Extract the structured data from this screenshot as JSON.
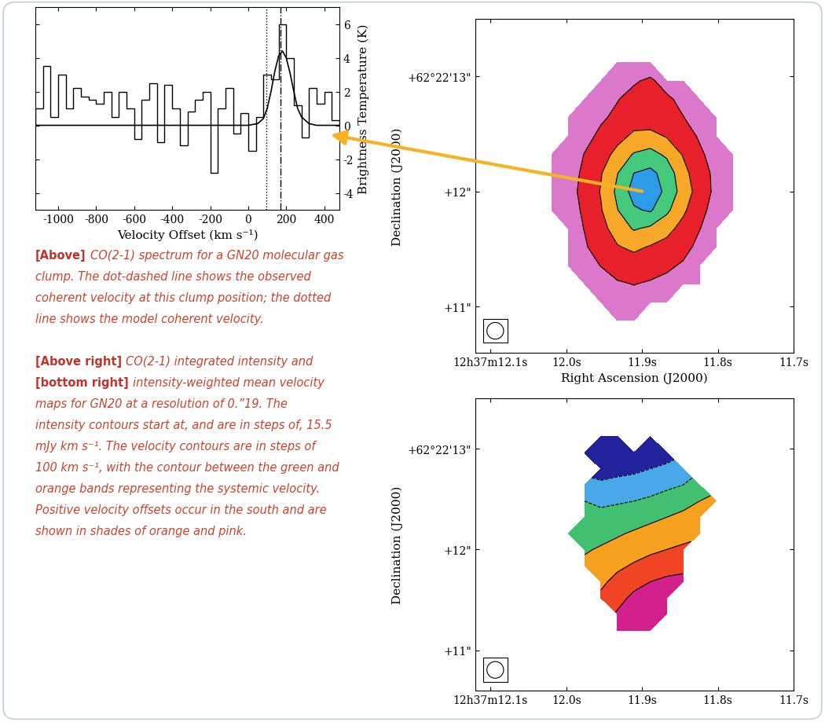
{
  "chart_data": [
    {
      "type": "step",
      "x_label": "Velocity Offset (km s⁻¹)",
      "y_label": "Brightness Temperature (K)",
      "color": "#000000",
      "bins": [
        -1120,
        -1080,
        -1040,
        -1000,
        -960,
        -920,
        -880,
        -840,
        -800,
        -760,
        -720,
        -680,
        -640,
        -600,
        -560,
        -520,
        -480,
        -440,
        -400,
        -360,
        -320,
        -280,
        -240,
        -200,
        -160,
        -120,
        -80,
        -40,
        0,
        40,
        80,
        120,
        160,
        200,
        240,
        280,
        320,
        360,
        400,
        440,
        480
      ],
      "values": [
        1.0,
        3.5,
        0.5,
        3.0,
        1.0,
        2.2,
        1.7,
        1.5,
        1.3,
        2.0,
        0.5,
        2.0,
        1.0,
        -0.8,
        1.5,
        2.5,
        -1.0,
        2.4,
        1.0,
        -1.2,
        0.8,
        1.5,
        2.0,
        -2.8,
        1.0,
        2.2,
        -0.5,
        0.7,
        -1.5,
        0.5,
        3.0,
        2.7,
        6.0,
        4.0,
        1.2,
        -0.7,
        2.2,
        1.3,
        2.0,
        0.3
      ],
      "fit": {
        "color": "#000000",
        "x": [
          -1120,
          0,
          50,
          80,
          100,
          120,
          140,
          160,
          180,
          200,
          220,
          240,
          260,
          280,
          320,
          360,
          480
        ],
        "values": [
          0,
          0,
          0.1,
          0.4,
          1.0,
          2.0,
          3.2,
          4.1,
          4.4,
          4.0,
          3.1,
          2.0,
          1.0,
          0.5,
          0.1,
          0,
          0
        ]
      },
      "vlines": [
        {
          "value": 170,
          "line_style": "dashdot"
        },
        {
          "value": 95,
          "line_style": "dotted"
        }
      ],
      "xlim": [
        -1120,
        480
      ],
      "ylim": [
        -5,
        7
      ],
      "xticks": [
        -1000,
        -800,
        -600,
        -400,
        -200,
        0,
        200,
        400
      ],
      "yticks": [
        -4,
        -2,
        0,
        2,
        4,
        6
      ]
    },
    {
      "type": "heatmap",
      "x_label": "Right Ascension (J2000)",
      "y_label": "Declination (J2000)",
      "x_extent": [
        12.03,
        11.77
      ],
      "y_extent": [
        10.8,
        13.2
      ],
      "color_range": [
        0,
        75
      ],
      "contour_levels": [
        15.5,
        31,
        46.5,
        62
      ],
      "colors": [
        "#dc78cc",
        "#e8202c",
        "#f8a828",
        "#44c87c",
        "#2c9ce8"
      ],
      "cells": [
        [
          null,
          null,
          null,
          null,
          5,
          8,
          6,
          null,
          null,
          null,
          null,
          null
        ],
        [
          null,
          null,
          null,
          6,
          10,
          14,
          18,
          10,
          7,
          null,
          null,
          null
        ],
        [
          null,
          null,
          5,
          10,
          15,
          20,
          16,
          18,
          12,
          6,
          null,
          null
        ],
        [
          null,
          4,
          8,
          14,
          18,
          24,
          22,
          20,
          16,
          10,
          5,
          null
        ],
        [
          null,
          6,
          12,
          18,
          26,
          34,
          36,
          30,
          22,
          14,
          8,
          null
        ],
        [
          4,
          8,
          16,
          24,
          36,
          48,
          52,
          44,
          30,
          18,
          10,
          5
        ],
        [
          5,
          10,
          18,
          30,
          46,
          62,
          66,
          56,
          36,
          22,
          12,
          6
        ],
        [
          5,
          10,
          20,
          32,
          50,
          68,
          72,
          58,
          40,
          24,
          12,
          5
        ],
        [
          4,
          9,
          18,
          30,
          46,
          60,
          64,
          50,
          34,
          20,
          10,
          4
        ],
        [
          null,
          8,
          16,
          26,
          38,
          48,
          44,
          36,
          26,
          16,
          8,
          null
        ],
        [
          null,
          6,
          14,
          22,
          30,
          34,
          30,
          26,
          20,
          12,
          6,
          null
        ],
        [
          null,
          5,
          10,
          16,
          22,
          24,
          22,
          18,
          14,
          8,
          null,
          null
        ],
        [
          null,
          null,
          6,
          10,
          14,
          16,
          14,
          12,
          8,
          5,
          null,
          null
        ],
        [
          null,
          null,
          null,
          5,
          8,
          10,
          8,
          6,
          null,
          null,
          null,
          null
        ],
        [
          null,
          null,
          null,
          null,
          5,
          6,
          null,
          null,
          null,
          null,
          null,
          null
        ]
      ],
      "xlim": [
        12.12,
        11.7
      ],
      "ylim": [
        10.6,
        13.5
      ],
      "xticks": [
        {
          "value": 12.1,
          "label": "12h37m12.1s"
        },
        {
          "value": 12.0,
          "label": "12.0s"
        },
        {
          "value": 11.9,
          "label": "11.9s"
        },
        {
          "value": 11.8,
          "label": "11.8s"
        },
        {
          "value": 11.7,
          "label": "11.7s"
        }
      ],
      "yticks": [
        {
          "value": 11,
          "label": "+11\""
        },
        {
          "value": 12,
          "label": "+12\""
        },
        {
          "value": 13,
          "label": "+62°22'13\""
        }
      ]
    },
    {
      "type": "heatmap",
      "y_label": "Declination (J2000)",
      "x_extent": [
        12.03,
        11.77
      ],
      "y_extent": [
        10.8,
        13.2
      ],
      "color_range": [
        -300,
        300
      ],
      "contour_levels": [
        -200,
        -100,
        0,
        100,
        200
      ],
      "colors": [
        "#22229c",
        "#48a8e8",
        "#40c070",
        "#f6a020",
        "#f04424",
        "#d4208c"
      ],
      "cells": [
        [
          null,
          null,
          null,
          -300,
          -300,
          null,
          -290,
          null,
          null,
          null,
          null,
          null
        ],
        [
          null,
          null,
          -300,
          -290,
          -270,
          -260,
          -250,
          -240,
          null,
          null,
          null,
          null
        ],
        [
          null,
          null,
          null,
          -250,
          -230,
          -220,
          -200,
          -180,
          -150,
          null,
          null,
          null
        ],
        [
          null,
          null,
          -160,
          -180,
          -170,
          -160,
          -150,
          -120,
          -100,
          -60,
          null,
          null
        ],
        [
          null,
          null,
          -100,
          -120,
          -110,
          -100,
          -80,
          -60,
          -30,
          0,
          30,
          null
        ],
        [
          null,
          null,
          -60,
          -70,
          -60,
          -40,
          -20,
          0,
          20,
          40,
          null,
          null
        ],
        [
          null,
          -40,
          -30,
          -30,
          -10,
          10,
          30,
          40,
          60,
          80,
          null,
          null
        ],
        [
          null,
          null,
          -10,
          10,
          30,
          60,
          80,
          100,
          120,
          null,
          null,
          null
        ],
        [
          null,
          null,
          20,
          50,
          80,
          110,
          140,
          160,
          170,
          null,
          null,
          null
        ],
        [
          null,
          null,
          null,
          80,
          130,
          170,
          200,
          220,
          230,
          null,
          null,
          null
        ],
        [
          null,
          null,
          null,
          120,
          170,
          220,
          250,
          260,
          null,
          null,
          null,
          null
        ],
        [
          null,
          null,
          null,
          null,
          210,
          260,
          280,
          290,
          null,
          null,
          null,
          null
        ],
        [
          null,
          null,
          null,
          null,
          240,
          280,
          300,
          null,
          null,
          null,
          null,
          null
        ],
        [
          null,
          null,
          null,
          null,
          null,
          null,
          null,
          null,
          null,
          null,
          null,
          null
        ],
        [
          null,
          null,
          null,
          null,
          null,
          null,
          null,
          null,
          null,
          null,
          null,
          null
        ]
      ],
      "xlim": [
        12.12,
        11.7
      ],
      "ylim": [
        10.6,
        13.5
      ],
      "xticks": [
        {
          "value": 12.1,
          "label": "12h37m12.1s"
        },
        {
          "value": 12.0,
          "label": "12.0s"
        },
        {
          "value": 11.9,
          "label": "11.9s"
        },
        {
          "value": 11.8,
          "label": "11.8s"
        },
        {
          "value": 11.7,
          "label": "11.7s"
        }
      ],
      "yticks": [
        {
          "value": 11,
          "label": "+11\""
        },
        {
          "value": 12,
          "label": "+12\""
        },
        {
          "value": 13,
          "label": "+62°22'13\""
        }
      ]
    }
  ],
  "captions": [
    {
      "lines": [
        {
          "label": "[Above]",
          "text": "CO(2-1) spectrum for a GN20 molecular gas"
        },
        {
          "text": "clump. The dot-dashed line shows the observed"
        },
        {
          "text": "coherent velocity at this clump position; the dotted"
        },
        {
          "text": "line shows the model coherent velocity."
        }
      ]
    },
    {
      "lines": [
        {
          "label": "[Above right]",
          "text": "CO(2-1) integrated intensity and"
        },
        {
          "label": "[bottom right]",
          "text": "intensity-weighted mean velocity"
        },
        {
          "text": "maps for GN20 at a resolution of 0.”19. The"
        },
        {
          "text": "intensity contours start at, and are in steps of, 15.5"
        },
        {
          "text": "mJy km s⁻¹. The velocity contours are in steps of"
        },
        {
          "text": "100 km s⁻¹, with the contour between the green and"
        },
        {
          "text": "orange bands representing the systemic velocity."
        },
        {
          "text": "Positive velocity offsets occur in the south and are"
        },
        {
          "text": "shown in shades of orange and pink."
        }
      ]
    }
  ]
}
